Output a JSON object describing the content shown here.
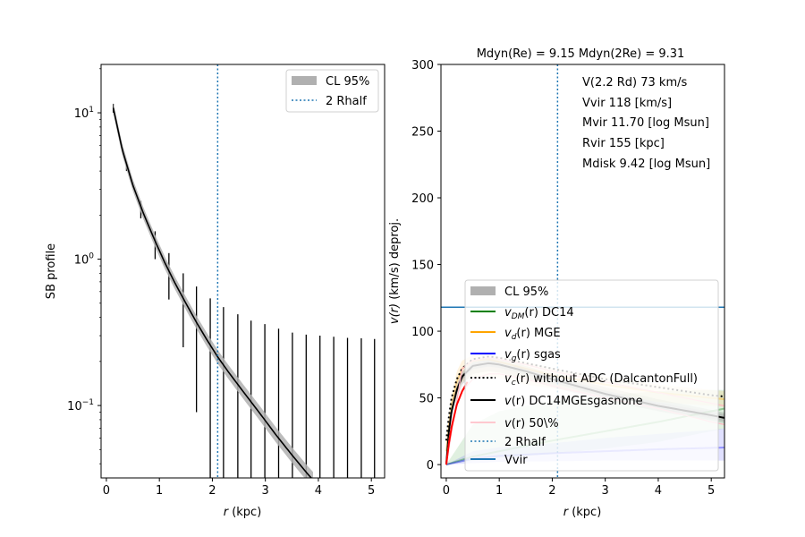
{
  "chart_data": [
    {
      "type": "line",
      "panel": "left",
      "title": "",
      "xlabel_italic": "r",
      "xlabel_rest": " (kpc)",
      "ylabel": "SB profile",
      "xlim": [
        -0.1,
        5.25
      ],
      "ylim": [
        0.032,
        21.4
      ],
      "yscale": "log",
      "xticks": [
        0,
        1,
        2,
        3,
        4,
        5
      ],
      "xtick_labels": [
        "0",
        "1",
        "2",
        "3",
        "4",
        "5"
      ],
      "yticks": [
        {
          "value": 10,
          "base": "10",
          "exp": "1"
        },
        {
          "value": 1,
          "base": "10",
          "exp": "0"
        },
        {
          "value": 0.1,
          "base": "10",
          "exp": "−1"
        }
      ],
      "model_curve": {
        "name": "model",
        "color": "#000000",
        "x": [
          0.13,
          0.3,
          0.5,
          0.7,
          0.9,
          1.1,
          1.3,
          1.5,
          1.7,
          1.9,
          2.1,
          2.3,
          2.6,
          2.9,
          3.2,
          3.5,
          3.8,
          3.9
        ],
        "y": [
          10.8,
          5.6,
          3.2,
          2.05,
          1.38,
          0.95,
          0.68,
          0.5,
          0.37,
          0.28,
          0.215,
          0.17,
          0.122,
          0.088,
          0.063,
          0.046,
          0.034,
          0.031
        ]
      },
      "band": {
        "label": "CL 95%",
        "color": "#b0b0b0",
        "rel_width": 0.09
      },
      "error_bars": {
        "color": "#000000",
        "points": [
          {
            "x": 0.13,
            "lo": 10.0,
            "hi": 11.5
          },
          {
            "x": 0.38,
            "lo": 4.0,
            "hi": 4.5
          },
          {
            "x": 0.65,
            "lo": 1.9,
            "hi": 2.5
          },
          {
            "x": 0.92,
            "lo": 1.0,
            "hi": 1.55
          },
          {
            "x": 1.18,
            "lo": 0.53,
            "hi": 1.1
          },
          {
            "x": 1.45,
            "lo": 0.25,
            "hi": 0.8
          },
          {
            "x": 1.7,
            "lo": 0.09,
            "hi": 0.65
          },
          {
            "x": 1.96,
            "lo": 0.001,
            "hi": 0.54
          },
          {
            "x": 2.21,
            "lo": 0.001,
            "hi": 0.47
          },
          {
            "x": 2.48,
            "lo": 0.001,
            "hi": 0.42
          },
          {
            "x": 2.73,
            "lo": 0.001,
            "hi": 0.38
          },
          {
            "x": 2.99,
            "lo": 0.001,
            "hi": 0.36
          },
          {
            "x": 3.25,
            "lo": 0.001,
            "hi": 0.335
          },
          {
            "x": 3.51,
            "lo": 0.001,
            "hi": 0.315
          },
          {
            "x": 3.77,
            "lo": 0.001,
            "hi": 0.305
          },
          {
            "x": 4.03,
            "lo": 0.001,
            "hi": 0.3
          },
          {
            "x": 4.29,
            "lo": 0.001,
            "hi": 0.295
          },
          {
            "x": 4.55,
            "lo": 0.001,
            "hi": 0.29
          },
          {
            "x": 4.81,
            "lo": 0.001,
            "hi": 0.288
          },
          {
            "x": 5.06,
            "lo": 0.001,
            "hi": 0.285
          }
        ]
      },
      "vline": {
        "x": 2.1,
        "label": "2 Rhalf",
        "color": "#1f77b4",
        "style": "dotted"
      },
      "legend": {
        "location": "upper right",
        "entries": [
          {
            "label": "CL 95%",
            "kind": "patch",
            "color": "#b0b0b0"
          },
          {
            "label": "2 Rhalf",
            "kind": "dotted",
            "color": "#1f77b4"
          }
        ]
      }
    },
    {
      "type": "line",
      "panel": "right",
      "title": "Mdyn(Re) = 9.15  Mdyn(2Re) = 9.31",
      "xlabel_italic": "r",
      "xlabel_rest": " (kpc)",
      "ylabel_italic": "v(r)",
      "ylabel_rest": " (km/s) deproj.",
      "xlim": [
        -0.1,
        5.25
      ],
      "ylim": [
        -10,
        300
      ],
      "xticks": [
        0,
        1,
        2,
        3,
        4,
        5
      ],
      "xtick_labels": [
        "0",
        "1",
        "2",
        "3",
        "4",
        "5"
      ],
      "yticks": [
        0,
        50,
        100,
        150,
        200,
        250,
        300
      ],
      "ytick_labels": [
        "0",
        "50",
        "100",
        "150",
        "200",
        "250",
        "300"
      ],
      "annotations": [
        "V(2.2 Rd) 73 km/s",
        "Vvir 118 [km/s]",
        "Mvir 11.70 [log Msun]",
        "Rvir 155 [kpc]",
        "Mdisk 9.42 [log Msun]"
      ],
      "hline": {
        "y": 118,
        "label": "Vvir",
        "color": "#1f77b4"
      },
      "vline": {
        "x": 2.1,
        "label": "2 Rhalf",
        "color": "#1f77b4",
        "style": "dotted"
      },
      "series": [
        {
          "name": "v_DM(r) DC14",
          "color": "#008000",
          "x": [
            0,
            0.5,
            1,
            2,
            3,
            4,
            5,
            5.25
          ],
          "y": [
            0,
            6,
            10,
            18,
            25,
            32,
            40,
            42
          ],
          "band_lo": [
            0,
            3,
            5,
            8,
            12,
            17,
            25,
            27
          ],
          "band_hi": [
            0,
            30,
            40,
            48,
            52,
            55,
            56,
            56
          ]
        },
        {
          "name": "v_d(r) MGE",
          "color": "#ffa500",
          "x": [
            0,
            0.05,
            0.1,
            0.2,
            0.3,
            0.5,
            0.8,
            1,
            1.5,
            2,
            3,
            4,
            5,
            5.25
          ],
          "y": [
            10,
            30,
            45,
            62,
            72,
            78,
            79,
            77,
            72,
            67,
            60,
            54,
            50,
            49
          ],
          "band_lo": [
            8,
            25,
            38,
            54,
            62,
            66,
            66,
            65,
            60,
            57,
            52,
            47,
            44,
            43
          ],
          "band_hi": [
            12,
            35,
            52,
            70,
            78,
            82,
            83,
            81,
            77,
            72,
            66,
            60,
            56,
            55
          ]
        },
        {
          "name": "v_g(r) sgas",
          "color": "#0000ff",
          "x": [
            0,
            0.5,
            1,
            2,
            3,
            4,
            5,
            5.25
          ],
          "y": [
            0,
            4.5,
            6.5,
            8.5,
            10,
            11.5,
            12.5,
            12.8
          ],
          "band_lo": [
            0,
            1,
            2,
            2.5,
            3,
            3,
            3,
            3
          ],
          "band_hi": [
            0,
            10,
            13,
            16,
            20,
            23,
            26,
            27
          ]
        },
        {
          "name": "v_c(r) without ADC (DalcantonFull)",
          "color": "#000000",
          "style": "dotted",
          "x": [
            0,
            0.05,
            0.1,
            0.2,
            0.3,
            0.5,
            0.8,
            1,
            1.5,
            2,
            3,
            4,
            5,
            5.25
          ],
          "y": [
            18,
            36,
            50,
            64,
            72,
            79,
            81,
            80,
            76,
            72,
            64,
            58,
            52,
            51
          ]
        },
        {
          "name": "v(r) DC14MGEsgasnone",
          "color": "#000000",
          "x": [
            0,
            0.05,
            0.1,
            0.2,
            0.3,
            0.5,
            0.8,
            1,
            1.5,
            2,
            3,
            4,
            5,
            5.25
          ],
          "y": [
            0,
            25,
            40,
            56,
            66,
            74,
            76,
            75,
            70,
            64,
            53,
            44,
            37,
            35
          ],
          "band_lo": [
            0,
            22,
            36,
            50,
            60,
            68,
            70,
            69,
            64,
            58,
            48,
            40,
            33,
            31
          ],
          "band_hi": [
            0,
            28,
            44,
            60,
            70,
            78,
            80,
            79,
            74,
            68,
            58,
            49,
            41,
            39
          ]
        },
        {
          "name": "v(r) 50\\%",
          "color": "#ffb6c1",
          "x": [
            0,
            0.05,
            0.1,
            0.2,
            0.3,
            0.5,
            0.8,
            1,
            1.5,
            2,
            3,
            4,
            5,
            5.25
          ],
          "y": [
            0,
            18,
            30,
            45,
            55,
            64,
            68,
            68,
            64,
            59,
            50,
            42,
            32,
            30
          ]
        },
        {
          "name": "v(r) 50% upper",
          "color": "#ffb6c1",
          "x": [
            0,
            0.3,
            0.5,
            0.8,
            1,
            1.5,
            2,
            3,
            4,
            5,
            5.25
          ],
          "y": [
            0,
            72,
            78,
            80,
            79,
            75,
            70,
            62,
            54,
            46,
            44
          ]
        },
        {
          "name": "v(r) red inner",
          "color": "#ff0000",
          "x": [
            0,
            0.05,
            0.1,
            0.2,
            0.3,
            0.4
          ],
          "y": [
            0,
            16,
            28,
            45,
            55,
            62
          ]
        }
      ],
      "legend": {
        "location": "lower right",
        "entries": [
          {
            "label": "CL 95%",
            "kind": "patch",
            "color": "#b0b0b0"
          },
          {
            "label_sym": "v",
            "label_sub": "DM",
            "label_rest": "(r) DC14",
            "kind": "line",
            "color": "#008000"
          },
          {
            "label_sym": "v",
            "label_sub": "d",
            "label_rest": "(r) MGE",
            "kind": "line",
            "color": "#ffa500"
          },
          {
            "label_sym": "v",
            "label_sub": "g",
            "label_rest": "(r) sgas",
            "kind": "line",
            "color": "#0000ff"
          },
          {
            "label_sym": "v",
            "label_sub": "c",
            "label_rest": "(r) without ADC (DalcantonFull)",
            "kind": "dotted",
            "color": "#000000"
          },
          {
            "label_sym": "v",
            "label_sub": "",
            "label_rest": "(r) DC14MGEsgasnone",
            "kind": "line",
            "color": "#000000"
          },
          {
            "label_sym": "v",
            "label_sub": "",
            "label_rest": "(r) 50\\%",
            "kind": "line",
            "color": "#ffb6c1"
          },
          {
            "label": "2 Rhalf",
            "kind": "dotted",
            "color": "#1f77b4"
          },
          {
            "label": "Vvir",
            "kind": "line",
            "color": "#1f77b4"
          }
        ]
      }
    }
  ]
}
